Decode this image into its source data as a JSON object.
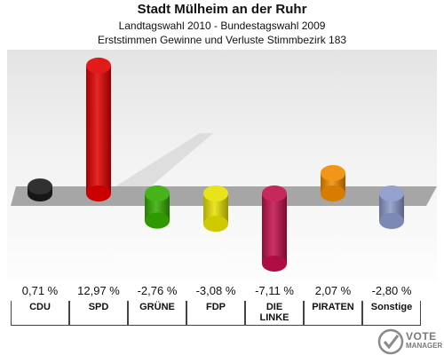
{
  "header": {
    "title": "Stadt Mülheim an der Ruhr",
    "subtitle1": "Landtagswahl 2010 - Bundestagswahl 2009",
    "subtitle2": "Erststimmen Gewinne und Verluste Stimmbezirk 183"
  },
  "chart_data": {
    "type": "bar",
    "title": "Stadt Mülheim an der Ruhr",
    "subtitle": "Landtagswahl 2010 - Bundestagswahl 2009 / Erststimmen Gewinne und Verluste Stimmbezirk 183",
    "categories": [
      "CDU",
      "SPD",
      "GRÜNE",
      "FDP",
      "DIE LINKE",
      "PIRATEN",
      "Sonstige"
    ],
    "values": [
      0.71,
      12.97,
      -2.76,
      -3.08,
      -7.11,
      2.07,
      -2.8
    ],
    "value_labels": [
      "0,71 %",
      "12,97 %",
      "-2,76 %",
      "-3,08 %",
      "-7,11 %",
      "2,07 %",
      "-2,80 %"
    ],
    "category_labels": [
      [
        "CDU"
      ],
      [
        "SPD"
      ],
      [
        "GRÜNE"
      ],
      [
        "FDP"
      ],
      [
        "DIE",
        "LINKE"
      ],
      [
        "PIRATEN"
      ],
      [
        "Sonstige"
      ]
    ],
    "colors": [
      "#1a1a1a",
      "#e00000",
      "#33aa00",
      "#e6e000",
      "#c0104a",
      "#f08a00",
      "#8a98c8"
    ],
    "ylim": [
      -7.5,
      13.5
    ],
    "grid": false,
    "legend": "none"
  },
  "logo": {
    "line1": "VOTE",
    "line2": "MANAGER"
  }
}
